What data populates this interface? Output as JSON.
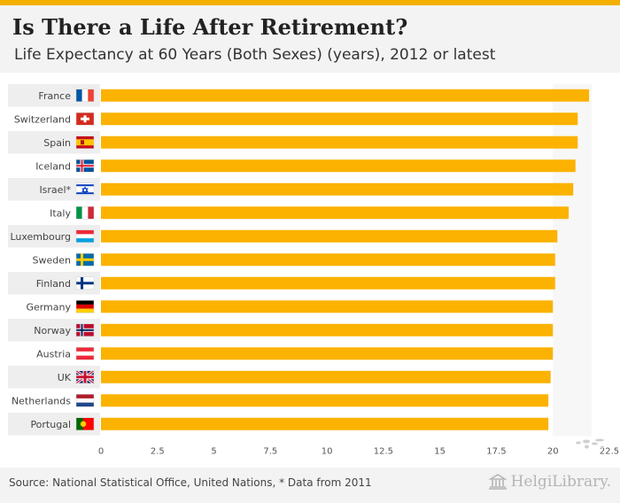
{
  "header": {
    "title": "Is There a Life After Retirement?",
    "subtitle": "Life Expectancy at 60 Years (Both Sexes) (years), 2012 or latest"
  },
  "footer": {
    "source": "Source: National Statistical Office, United Nations, * Data from 2011",
    "brand": "HelgiLibrary."
  },
  "colors": {
    "bar": "#fbb200",
    "accent": "#f3b000",
    "row_band": "#eeeeee"
  },
  "chart_data": {
    "type": "bar",
    "orientation": "horizontal",
    "title": "Is There a Life After Retirement?",
    "subtitle": "Life Expectancy at 60 Years (Both Sexes) (years), 2012 or latest",
    "categories": [
      "France",
      "Switzerland",
      "Spain",
      "Iceland",
      "Israel*",
      "Italy",
      "Luxembourg",
      "Sweden",
      "Finland",
      "Germany",
      "Norway",
      "Austria",
      "UK",
      "Netherlands",
      "Portugal"
    ],
    "flags": [
      "france",
      "switzerland",
      "spain",
      "iceland",
      "israel",
      "italy",
      "luxembourg",
      "sweden",
      "finland",
      "germany",
      "norway",
      "austria",
      "uk",
      "netherlands",
      "portugal"
    ],
    "values": [
      21.6,
      21.1,
      21.1,
      21.0,
      20.9,
      20.7,
      20.2,
      20.1,
      20.1,
      20.0,
      20.0,
      20.0,
      19.9,
      19.8,
      19.8
    ],
    "xlim": [
      0,
      22.5
    ],
    "xticks": [
      "0",
      "2.5",
      "5",
      "7.5",
      "10",
      "12.5",
      "15",
      "17.5",
      "20",
      "22.5"
    ],
    "xlabel": "",
    "ylabel": "",
    "grid": false
  }
}
